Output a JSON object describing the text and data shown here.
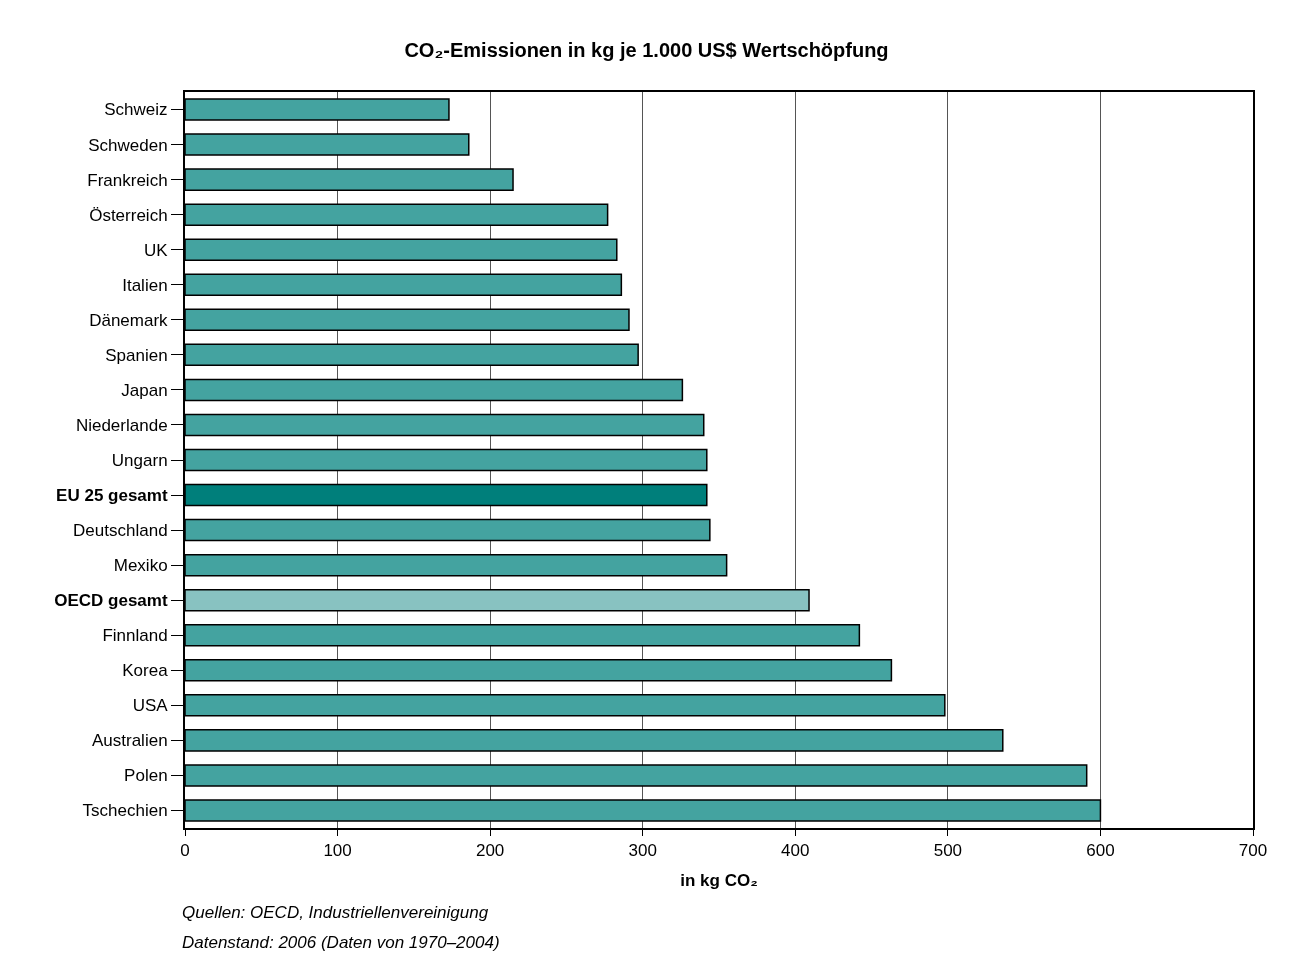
{
  "chart_data": {
    "type": "bar",
    "orientation": "horizontal",
    "title": "CO₂-Emissionen in kg je 1.000 US$ Wertschöpfung",
    "xlabel": "in kg CO₂",
    "categories": [
      "Schweiz",
      "Schweden",
      "Frankreich",
      "Österreich",
      "UK",
      "Italien",
      "Dänemark",
      "Spanien",
      "Japan",
      "Niederlande",
      "Ungarn",
      "EU 25 gesamt",
      "Deutschland",
      "Mexiko",
      "OECD gesamt",
      "Finnland",
      "Korea",
      "USA",
      "Australien",
      "Polen",
      "Tschechien"
    ],
    "values": [
      173,
      186,
      215,
      277,
      283,
      286,
      291,
      297,
      326,
      340,
      342,
      342,
      344,
      355,
      409,
      442,
      463,
      498,
      536,
      591,
      600
    ],
    "colors": [
      "#44a3a0",
      "#44a3a0",
      "#44a3a0",
      "#44a3a0",
      "#44a3a0",
      "#44a3a0",
      "#44a3a0",
      "#44a3a0",
      "#44a3a0",
      "#44a3a0",
      "#44a3a0",
      "#007f7b",
      "#44a3a0",
      "#44a3a0",
      "#88c2c1",
      "#44a3a0",
      "#44a3a0",
      "#44a3a0",
      "#44a3a0",
      "#44a3a0",
      "#44a3a0"
    ],
    "xlim": [
      0,
      700
    ],
    "xticks": [
      0,
      100,
      200,
      300,
      400,
      500,
      600,
      700
    ],
    "grid": "x",
    "legend": false,
    "annotations": [
      "Quellen: OECD, Industriellenvereinigung",
      "Datenstand: 2006 (Daten von 1970–2004)"
    ]
  }
}
